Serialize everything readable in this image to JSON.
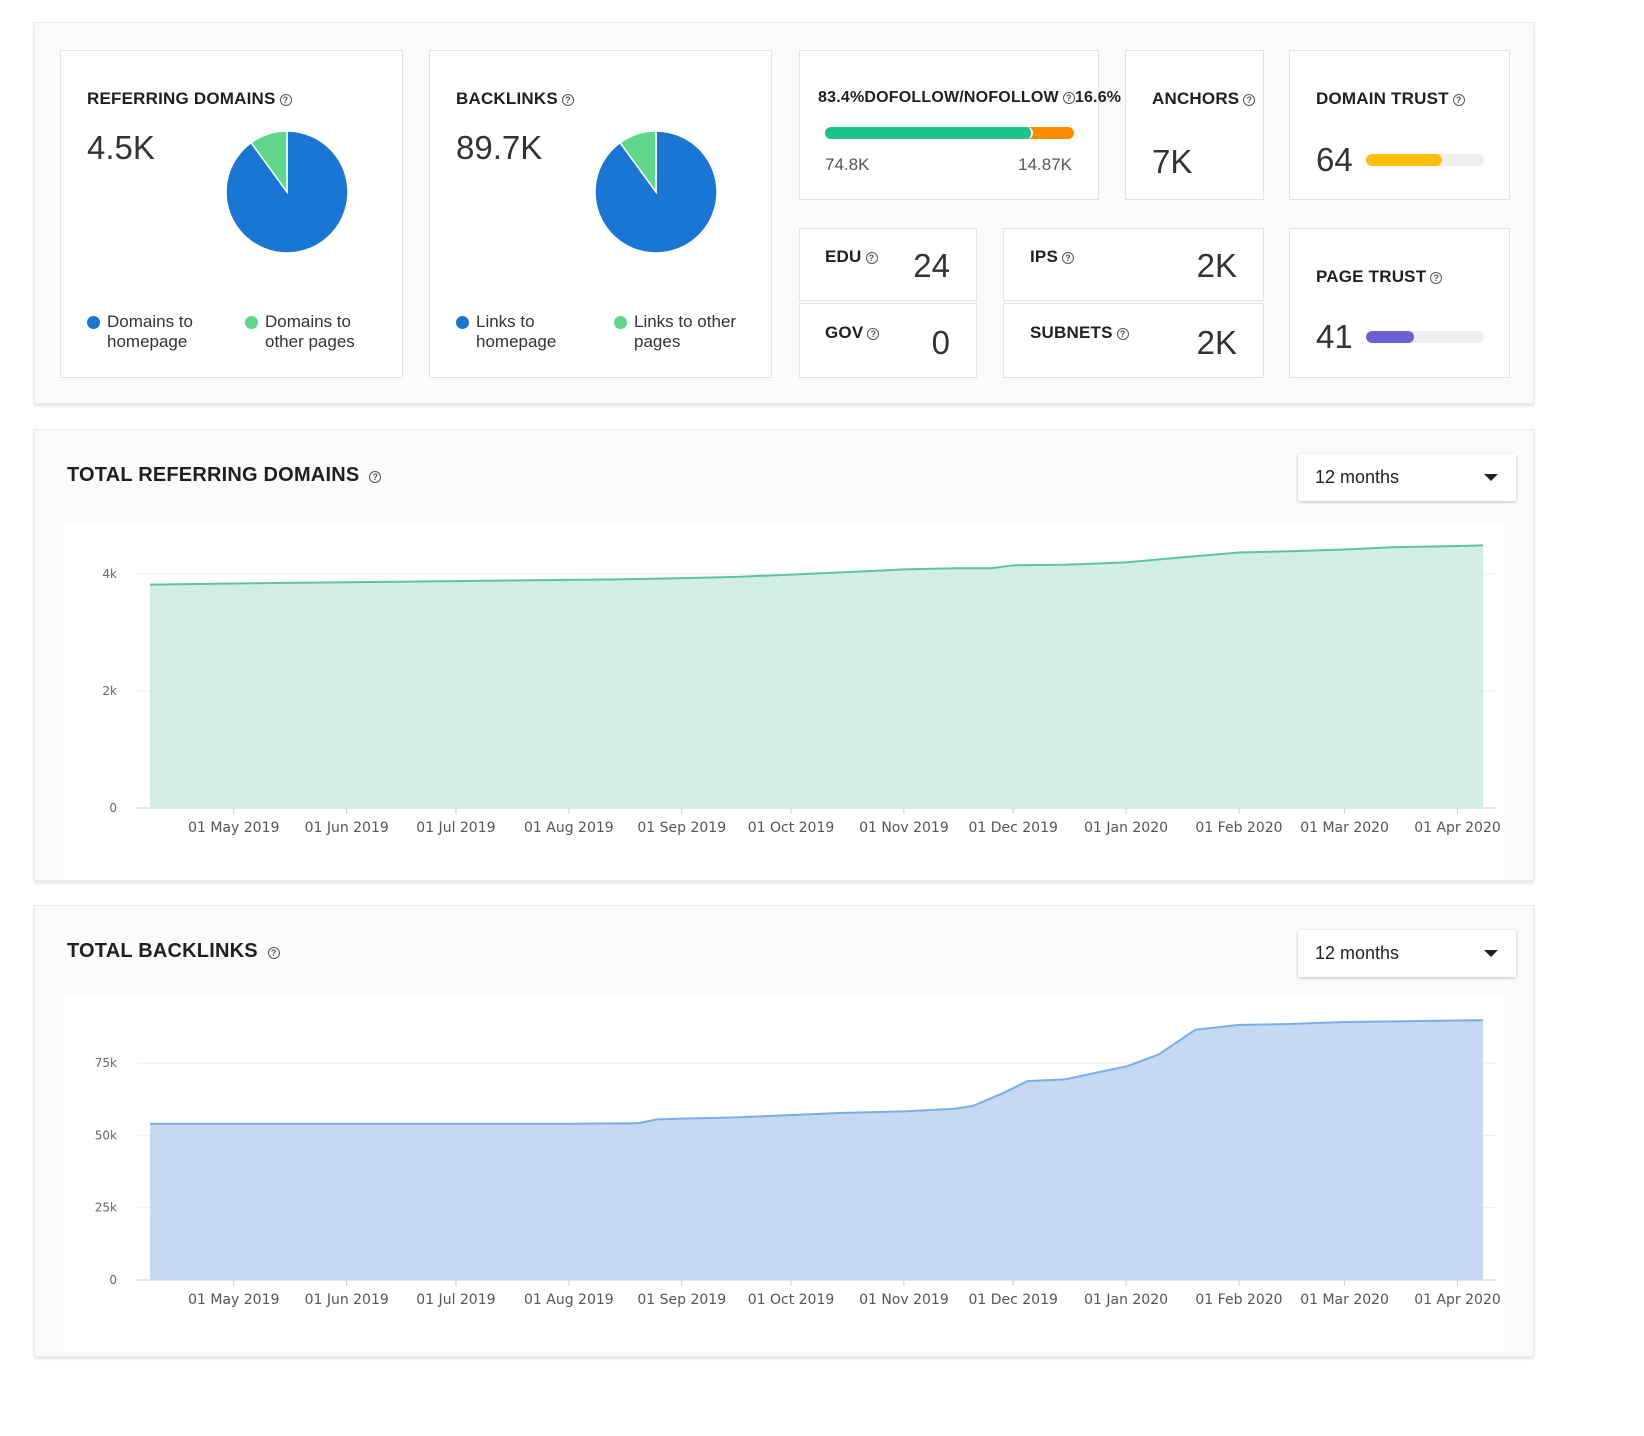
{
  "summary": {
    "referring_domains": {
      "label": "REFERRING DOMAINS",
      "value": "4.5K",
      "legend": [
        {
          "label": "Domains to homepage",
          "color": "#1976d2"
        },
        {
          "label": "Domains to other pages",
          "color": "#5fd68a"
        }
      ],
      "chart_data": {
        "type": "pie",
        "slices": [
          {
            "label": "Domains to homepage",
            "fraction": 0.9
          },
          {
            "label": "Domains to other pages",
            "fraction": 0.1
          }
        ]
      }
    },
    "backlinks": {
      "label": "BACKLINKS",
      "value": "89.7K",
      "legend": [
        {
          "label": "Links to homepage",
          "color": "#1976d2"
        },
        {
          "label": "Links to other pages",
          "color": "#5fd68a"
        }
      ],
      "chart_data": {
        "type": "pie",
        "slices": [
          {
            "label": "Links to homepage",
            "fraction": 0.9
          },
          {
            "label": "Links to other pages",
            "fraction": 0.1
          }
        ]
      }
    },
    "dofollow": {
      "dofollow_pct": "83.4%",
      "label": "DOFOLLOW/NOFOLLOW",
      "nofollow_pct": "16.6%",
      "dofollow_value": "74.8K",
      "nofollow_value": "14.87K",
      "dofollow_fraction": 0.834,
      "dofollow_color": "#1ec28b",
      "nofollow_color": "#ff8c00"
    },
    "anchors": {
      "label": "ANCHORS",
      "value": "7K"
    },
    "domain_trust": {
      "label": "DOMAIN TRUST",
      "value": "64",
      "fraction": 0.64,
      "color": "#ffbf00"
    },
    "edu": {
      "label": "EDU",
      "value": "24"
    },
    "gov": {
      "label": "GOV",
      "value": "0"
    },
    "ips": {
      "label": "IPS",
      "value": "2K"
    },
    "subnets": {
      "label": "SUBNETS",
      "value": "2K"
    },
    "page_trust": {
      "label": "PAGE TRUST",
      "value": "41",
      "fraction": 0.41,
      "color": "#6a5fd3"
    }
  },
  "referring_chart": {
    "title": "TOTAL REFERRING DOMAINS",
    "period": "12 months",
    "chart_data": {
      "type": "area",
      "color": "#5cc69a",
      "fill": "#d2ede3",
      "y_ticks": [
        {
          "value": 0,
          "label": "0"
        },
        {
          "value": 2000,
          "label": "2k"
        },
        {
          "value": 4000,
          "label": "4k"
        }
      ],
      "ylim": [
        0,
        4600
      ],
      "x_labels": [
        "01 May 2019",
        "01 Jun 2019",
        "01 Jul 2019",
        "01 Aug 2019",
        "01 Sep 2019",
        "01 Oct 2019",
        "01 Nov 2019",
        "01 Dec 2019",
        "01 Jan 2020",
        "01 Feb 2020",
        "01 Mar 2020",
        "01 Apr 2020"
      ],
      "x": [
        "2019-04-08",
        "2019-05-01",
        "2019-05-15",
        "2019-06-01",
        "2019-06-15",
        "2019-07-01",
        "2019-07-15",
        "2019-08-01",
        "2019-08-15",
        "2019-09-01",
        "2019-09-15",
        "2019-10-01",
        "2019-10-15",
        "2019-11-01",
        "2019-11-15",
        "2019-11-25",
        "2019-12-01",
        "2019-12-15",
        "2020-01-01",
        "2020-01-15",
        "2020-02-01",
        "2020-02-15",
        "2020-03-01",
        "2020-03-15",
        "2020-04-01",
        "2020-04-08"
      ],
      "values": [
        3820,
        3840,
        3850,
        3860,
        3870,
        3880,
        3890,
        3900,
        3910,
        3930,
        3950,
        3990,
        4030,
        4080,
        4100,
        4100,
        4150,
        4160,
        4200,
        4280,
        4370,
        4390,
        4420,
        4460,
        4480,
        4490
      ]
    }
  },
  "backlinks_chart": {
    "title": "TOTAL BACKLINKS",
    "period": "12 months",
    "chart_data": {
      "type": "area",
      "color": "#7aaee6",
      "fill": "#c5daf2",
      "y_ticks": [
        {
          "value": 0,
          "label": "0"
        },
        {
          "value": 25000,
          "label": "25k"
        },
        {
          "value": 50000,
          "label": "50k"
        },
        {
          "value": 75000,
          "label": "75k"
        }
      ],
      "ylim": [
        0,
        93000
      ],
      "x_labels": [
        "01 May 2019",
        "01 Jun 2019",
        "01 Jul 2019",
        "01 Aug 2019",
        "01 Sep 2019",
        "01 Oct 2019",
        "01 Nov 2019",
        "01 Dec 2019",
        "01 Jan 2020",
        "01 Feb 2020",
        "01 Mar 2020",
        "01 Apr 2020"
      ],
      "x": [
        "2019-04-08",
        "2019-05-01",
        "2019-06-01",
        "2019-07-01",
        "2019-08-01",
        "2019-08-20",
        "2019-08-25",
        "2019-09-01",
        "2019-09-15",
        "2019-10-01",
        "2019-10-15",
        "2019-11-01",
        "2019-11-15",
        "2019-11-20",
        "2019-11-28",
        "2019-12-05",
        "2019-12-15",
        "2019-12-25",
        "2020-01-01",
        "2020-01-10",
        "2020-01-20",
        "2020-02-01",
        "2020-02-15",
        "2020-03-01",
        "2020-03-15",
        "2020-04-01",
        "2020-04-08"
      ],
      "values": [
        54000,
        54000,
        54000,
        54000,
        54000,
        54200,
        55500,
        55800,
        56200,
        57000,
        57800,
        58300,
        59200,
        60200,
        64500,
        68800,
        69300,
        72000,
        73800,
        78000,
        86500,
        88200,
        88500,
        89200,
        89400,
        89700,
        89800
      ]
    }
  }
}
